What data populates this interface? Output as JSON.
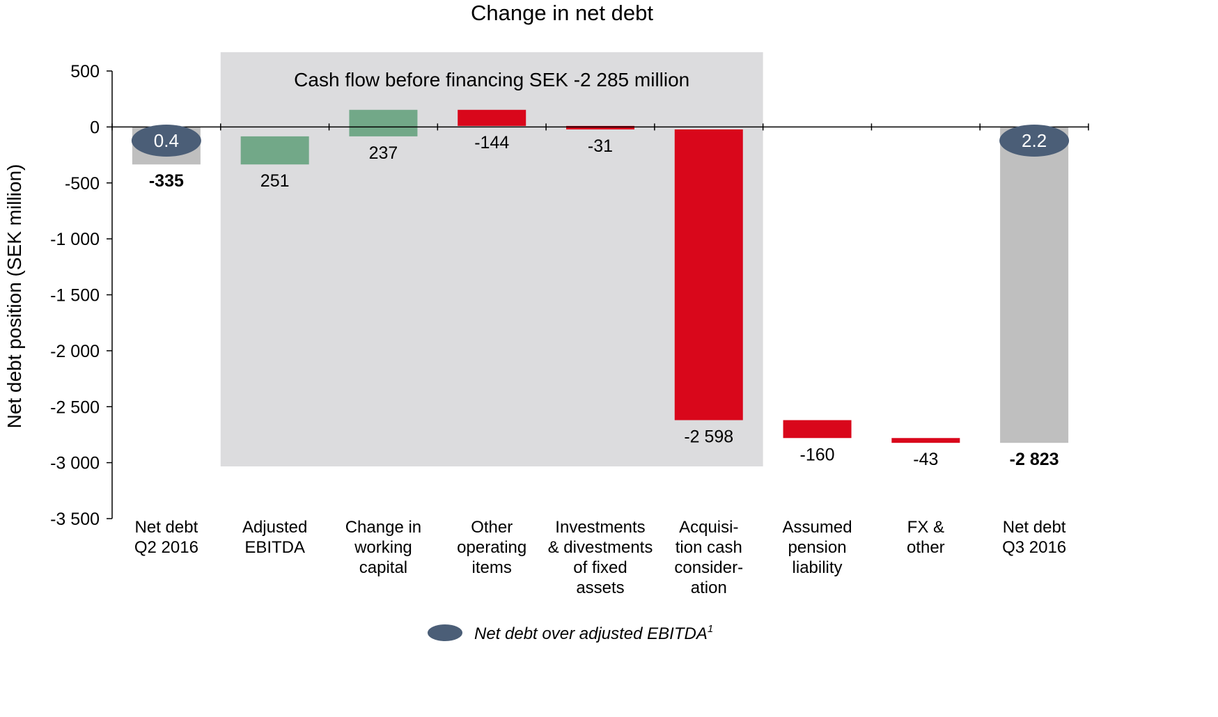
{
  "chart_data": {
    "type": "bar",
    "subtype": "waterfall",
    "title": "Change in net debt",
    "ylabel": "Net debt position (SEK million)",
    "ylim": [
      -3500,
      500
    ],
    "ytick_values": [
      500,
      0,
      -500,
      -1000,
      -1500,
      -2000,
      -2500,
      -3000,
      -3500
    ],
    "ytick_labels": [
      "500",
      "0",
      "-500",
      "-1 000",
      "-1 500",
      "-2 000",
      "-2 500",
      "-3 000",
      "-3 500"
    ],
    "categories": [
      [
        "Net debt",
        "Q2 2016"
      ],
      [
        "Adjusted",
        "EBITDA"
      ],
      [
        "Change in",
        "working",
        "capital"
      ],
      [
        "Other",
        "operating",
        "items"
      ],
      [
        "Investments",
        "& divestments",
        "of fixed",
        "assets"
      ],
      [
        "Acquisi-",
        "tion cash",
        "consider-",
        "ation"
      ],
      [
        "Assumed",
        "pension",
        "liability"
      ],
      [
        "FX &",
        "other"
      ],
      [
        "Net debt",
        "Q3 2016"
      ]
    ],
    "bars": [
      {
        "kind": "total",
        "start": 0,
        "end": -335,
        "value": -335,
        "label": "-335",
        "bold": true
      },
      {
        "kind": "increase",
        "start": -335,
        "end": -84,
        "value": 251,
        "label": "251",
        "bold": false
      },
      {
        "kind": "increase",
        "start": -84,
        "end": 153,
        "value": 237,
        "label": "237",
        "bold": false
      },
      {
        "kind": "decrease",
        "start": 153,
        "end": 9,
        "value": -144,
        "label": "-144",
        "bold": false
      },
      {
        "kind": "decrease",
        "start": 9,
        "end": -22,
        "value": -31,
        "label": "-31",
        "bold": false
      },
      {
        "kind": "decrease",
        "start": -22,
        "end": -2620,
        "value": -2598,
        "label": "-2 598",
        "bold": false
      },
      {
        "kind": "decrease",
        "start": -2620,
        "end": -2780,
        "value": -160,
        "label": "-160",
        "bold": false
      },
      {
        "kind": "decrease",
        "start": -2780,
        "end": -2823,
        "value": -43,
        "label": "-43",
        "bold": false
      },
      {
        "kind": "total",
        "start": 0,
        "end": -2823,
        "value": -2823,
        "label": "-2 823",
        "bold": true
      }
    ],
    "ratio_markers": [
      {
        "category_index": 0,
        "label": "0.4"
      },
      {
        "category_index": 8,
        "label": "2.2"
      }
    ],
    "highlight_box": {
      "label": "Cash flow before financing SEK -2 285 million",
      "from_category": 1,
      "to_category": 5
    },
    "legend": {
      "label": "Net debt over adjusted EBITDA",
      "superscript": "1",
      "position": "bottom-center"
    },
    "colors": {
      "total": "#bfbfbf",
      "increase": "#72a888",
      "decrease": "#d9071b",
      "marker": "#4b5e77",
      "highlight": "#dcdcde",
      "axis": "#000000"
    },
    "grid": false
  }
}
